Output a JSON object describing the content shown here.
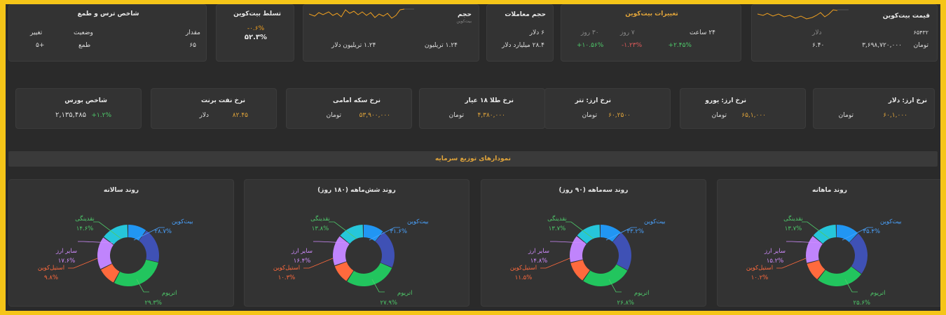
{
  "fear_greed": {
    "title": "شاخص ترس و طمع",
    "col_value": "مقدار",
    "col_status": "وضعیت",
    "col_change": "تغییر",
    "value": "۶۵",
    "status": "طمع",
    "change": "+۵"
  },
  "dominance": {
    "title": "تسلط بیت‌کوین",
    "change": "-۰.۶%",
    "value": "۵۲.۳%"
  },
  "volume": {
    "title": "حجم",
    "sub": "بیت‌کوین",
    "value1": "۱.۲۴ تریلیون",
    "value2": "۱.۲۴ تریلیون دلار"
  },
  "trade_volume": {
    "title": "حجم معاملات",
    "line1": "۶ دلار",
    "line2": "۲۸.۴ میلیارد دلار"
  },
  "btc_changes": {
    "title": "تغییرات بیت‌کوین",
    "h24_label": "۲۴ ساعت",
    "d7_label": "۷ روز",
    "d30_label": "۳۰ روز",
    "h24": "+۲.۴۵%",
    "d7": "-۱.۲۳%",
    "d30": "+۱۰.۵۶%"
  },
  "btc_price": {
    "title": "قیمت بیت‌کوین",
    "dollar_label": "دلار",
    "dollar_value": "۶۵۴۳۲",
    "toman_label": "تومان",
    "toman_value": "۳,۶۹۸,۷۲۰,۰۰۰",
    "toman_sub": "۶.۴۰"
  },
  "rates": [
    {
      "title": "شاخص بورس",
      "value": "۲,۱۳۵,۴۸۵",
      "unit": "",
      "change": "+۱.۲%"
    },
    {
      "title": "نرخ نفت برنت",
      "value": "۸۲.۴۵",
      "unit": "دلار",
      "change": ""
    },
    {
      "title": "نرخ سکه امامی",
      "value": "۵۳,۹۰۰,۰۰۰",
      "unit": "تومان",
      "change": ""
    },
    {
      "title": "نرخ طلا ۱۸ عیار",
      "value": "۴,۳۸۰,۰۰۰",
      "unit": "تومان",
      "change": ""
    },
    {
      "title": "نرخ ارز: تتر",
      "value": "۶۰,۲۵۰۰",
      "unit": "تومان",
      "change": ""
    },
    {
      "title": "نرخ ارز: یورو",
      "value": "۶۵,۱,۰۰۰",
      "unit": "تومان",
      "change": ""
    },
    {
      "title": "نرخ ارز: دلار",
      "value": "۶۰,۱,۰۰۰",
      "unit": "تومان",
      "change": ""
    }
  ],
  "section_title": "نمودارهای توزیع سرمایه",
  "colors": {
    "bitcoin": "#2196f3",
    "bitcoin_dark": "#3f51b5",
    "ethereum": "#22c55e",
    "stablecoin": "#ff6a3d",
    "other": "#c084fc",
    "cash": "#26c6da"
  },
  "chart_data": [
    {
      "type": "pie",
      "title": "روند ماهانه",
      "labels": [
        "بیت‌کوین",
        "اتریوم",
        "استیل‌کوین",
        "سایر ارز",
        "نقدینگی"
      ],
      "values": [
        35.4,
        25.6,
        10.2,
        15.2,
        13.7
      ],
      "value_texts": [
        "۳۵.۴%",
        "۲۵.۶%",
        "۱۰.۲%",
        "۱۵.۲%",
        "۱۳.۷%"
      ]
    },
    {
      "type": "pie",
      "title": "روند سه‌ماهه (۹۰ روز)",
      "labels": [
        "بیت‌کوین",
        "اتریوم",
        "استیل‌کوین",
        "سایر ارز",
        "نقدینگی"
      ],
      "values": [
        33.2,
        26.8,
        11.5,
        14.8,
        13.7
      ],
      "value_texts": [
        "۳۳.۲%",
        "۲۶.۸%",
        "۱۱.۵%",
        "۱۴.۸%",
        "۱۳.۷%"
      ]
    },
    {
      "type": "pie",
      "title": "روند شش‌ماهه (۱۸۰ روز)",
      "labels": [
        "بیت‌کوین",
        "اتریوم",
        "استیل‌کوین",
        "سایر ارز",
        "نقدینگی"
      ],
      "values": [
        31.6,
        27.9,
        10.3,
        16.4,
        13.8
      ],
      "value_texts": [
        "۳۱.۶%",
        "۲۷.۹%",
        "۱۰.۳%",
        "۱۶.۴%",
        "۱۳.۸%"
      ]
    },
    {
      "type": "pie",
      "title": "روند سالانه",
      "labels": [
        "بیت‌کوین",
        "اتریوم",
        "استیل‌کوین",
        "سایر ارز",
        "نقدینگی"
      ],
      "values": [
        28.7,
        29.3,
        9.8,
        17.6,
        14.6
      ],
      "value_texts": [
        "۲۸.۷%",
        "۲۹.۳%",
        "۹.۸%",
        "۱۷.۶%",
        "۱۴.۶%"
      ]
    }
  ]
}
